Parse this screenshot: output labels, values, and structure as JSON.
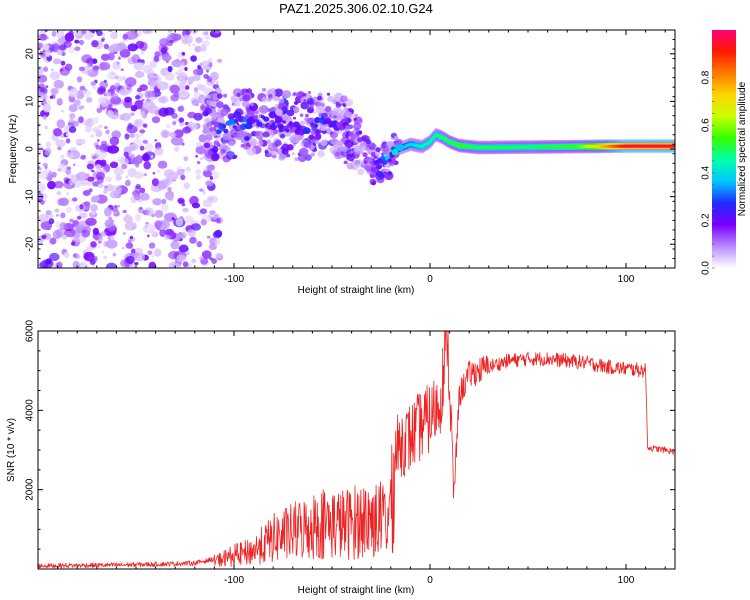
{
  "title": "PAZ1.2025.306.02.10.G24",
  "chart_data": [
    {
      "type": "heatmap",
      "xlabel": "Height of straight line (km)",
      "ylabel": "Frequency (Hz)",
      "xlim": [
        -200,
        125
      ],
      "ylim": [
        -25,
        25
      ],
      "xticks": [
        -100,
        0,
        100
      ],
      "xtick_labels": [
        "-100",
        "0",
        "100"
      ],
      "yticks": [
        -20,
        -10,
        0,
        10,
        20
      ],
      "ytick_labels": [
        "-20",
        "-10",
        "0",
        "10",
        "20"
      ],
      "frequency_ridge": {
        "x": [
          -115,
          -105,
          -95,
          -85,
          -75,
          -65,
          -55,
          -45,
          -38,
          -32,
          -28,
          -22,
          -16,
          -10,
          -4,
          0,
          3,
          6,
          10,
          15,
          25,
          50,
          75,
          100,
          125
        ],
        "y": [
          5,
          4.5,
          5.5,
          6,
          5,
          4.5,
          6,
          5,
          2,
          -1,
          -4,
          -2,
          0,
          1,
          0.5,
          1.5,
          3,
          2.5,
          1.5,
          0.7,
          0.3,
          0.4,
          0.5,
          0.6,
          0.6
        ],
        "amplitude": [
          0.1,
          0.25,
          0.25,
          0.2,
          0.2,
          0.2,
          0.22,
          0.18,
          0.12,
          0.1,
          0.15,
          0.3,
          0.35,
          0.4,
          0.45,
          0.45,
          0.45,
          0.5,
          0.5,
          0.55,
          0.5,
          0.5,
          0.55,
          0.95,
          0.95
        ]
      },
      "noise_region_x": [
        -200,
        -115
      ],
      "colorbar": {
        "label": "Normalized spectral amplitude",
        "range": [
          0,
          1
        ],
        "ticks": [
          0.0,
          0.2,
          0.4,
          0.6,
          0.8
        ],
        "tick_labels": [
          "0.0",
          "0.2",
          "0.4",
          "0.6",
          "0.8"
        ],
        "colors": [
          "#ffffff",
          "#b98aff",
          "#7a00ff",
          "#1f2bff",
          "#00c8ff",
          "#00ffaa",
          "#33ff00",
          "#c8ff00",
          "#ffd400",
          "#ff7a00",
          "#ff1a00",
          "#ff007a"
        ]
      }
    },
    {
      "type": "line",
      "xlabel": "Height of straight line (km)",
      "ylabel": "SNR (10 * v/v)",
      "xlim": [
        -200,
        125
      ],
      "ylim": [
        0,
        6000
      ],
      "xticks": [
        -100,
        0,
        100
      ],
      "xtick_labels": [
        "-100",
        "0",
        "100"
      ],
      "yticks": [
        2000,
        4000,
        6000
      ],
      "ytick_labels": [
        "2000",
        "4000",
        "6000"
      ],
      "color": "#ee2222",
      "series": [
        {
          "name": "SNR",
          "x": [
            -200,
            -180,
            -160,
            -140,
            -120,
            -110,
            -100,
            -95,
            -90,
            -85,
            -80,
            -75,
            -70,
            -65,
            -60,
            -55,
            -50,
            -45,
            -40,
            -35,
            -30,
            -25,
            -21,
            -18,
            -15,
            -10,
            -5,
            0,
            5,
            8,
            9,
            10,
            11,
            12,
            15,
            20,
            30,
            40,
            50,
            60,
            70,
            80,
            90,
            100,
            110,
            111,
            112,
            120,
            125
          ],
          "y": [
            80,
            90,
            100,
            120,
            150,
            250,
            450,
            500,
            600,
            800,
            1000,
            1100,
            1200,
            1300,
            1400,
            1500,
            1500,
            1450,
            1500,
            1600,
            1600,
            1600,
            1700,
            2800,
            3200,
            3300,
            3600,
            3800,
            4200,
            5500,
            6000,
            4500,
            3500,
            1700,
            4400,
            4900,
            5100,
            5250,
            5300,
            5300,
            5250,
            5200,
            5100,
            5050,
            5000,
            3100,
            3050,
            3000,
            2950
          ]
        }
      ]
    }
  ]
}
